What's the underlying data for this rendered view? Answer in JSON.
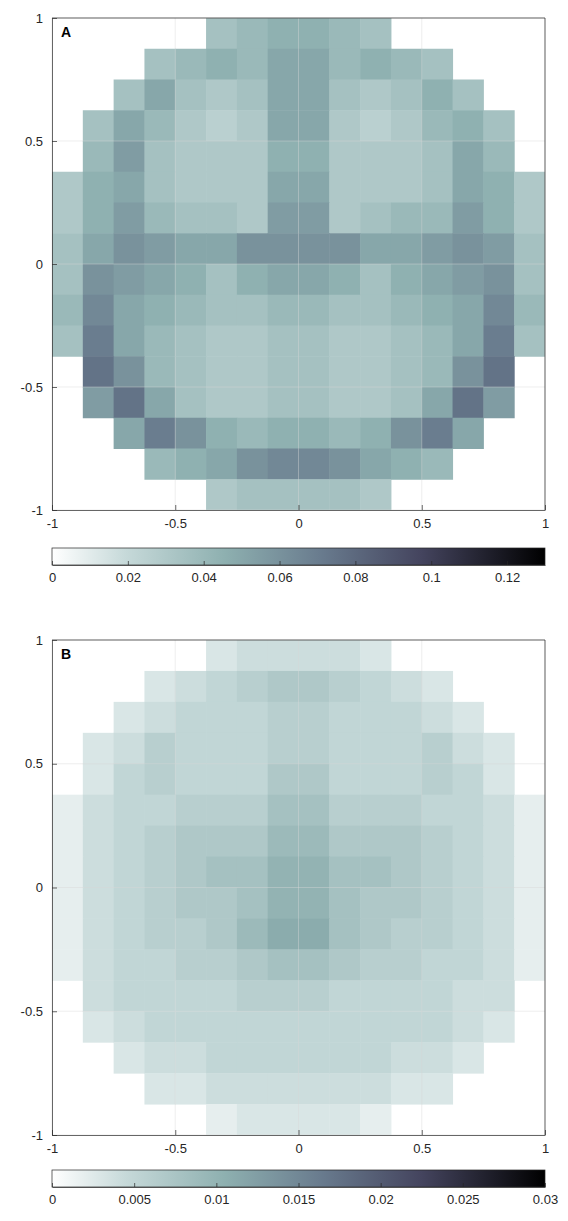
{
  "chart_data": [
    {
      "type": "heatmap",
      "title": "A",
      "grid": true,
      "xlim": [
        -1,
        1
      ],
      "ylim": [
        -1,
        1
      ],
      "xticks": [
        -1,
        -0.5,
        0,
        0.5,
        1
      ],
      "yticks": [
        -1,
        -0.5,
        0,
        0.5,
        1
      ],
      "x": [
        -0.9375,
        -0.8125,
        -0.6875,
        -0.5625,
        -0.4375,
        -0.3125,
        -0.1875,
        -0.0625,
        0.0625,
        0.1875,
        0.3125,
        0.4375,
        0.5625,
        0.6875,
        0.8125,
        0.9375
      ],
      "y": [
        0.9375,
        0.8125,
        0.6875,
        0.5625,
        0.4375,
        0.3125,
        0.1875,
        0.0625,
        -0.0625,
        -0.1875,
        -0.3125,
        -0.4375,
        -0.5625,
        -0.6875,
        -0.8125,
        -0.9375
      ],
      "values": [
        [
          null,
          null,
          null,
          null,
          null,
          0.035,
          0.04,
          0.045,
          0.045,
          0.04,
          0.035,
          null,
          null,
          null,
          null,
          null
        ],
        [
          null,
          null,
          null,
          0.035,
          0.04,
          0.045,
          0.04,
          0.05,
          0.05,
          0.04,
          0.045,
          0.04,
          0.035,
          null,
          null,
          null
        ],
        [
          null,
          null,
          0.035,
          0.05,
          0.035,
          0.03,
          0.035,
          0.05,
          0.05,
          0.035,
          0.03,
          0.035,
          0.045,
          0.035,
          null,
          null
        ],
        [
          null,
          0.035,
          0.05,
          0.04,
          0.03,
          0.025,
          0.03,
          0.05,
          0.05,
          0.03,
          0.025,
          0.03,
          0.04,
          0.045,
          0.035,
          null
        ],
        [
          null,
          0.04,
          0.055,
          0.035,
          0.03,
          0.03,
          0.03,
          0.045,
          0.045,
          0.03,
          0.03,
          0.03,
          0.035,
          0.05,
          0.04,
          null
        ],
        [
          0.03,
          0.045,
          0.05,
          0.035,
          0.03,
          0.03,
          0.03,
          0.05,
          0.05,
          0.03,
          0.03,
          0.03,
          0.035,
          0.05,
          0.045,
          0.03
        ],
        [
          0.03,
          0.045,
          0.055,
          0.04,
          0.035,
          0.035,
          0.03,
          0.055,
          0.055,
          0.03,
          0.035,
          0.04,
          0.04,
          0.055,
          0.045,
          0.03
        ],
        [
          0.035,
          0.05,
          0.06,
          0.055,
          0.05,
          0.05,
          0.06,
          0.06,
          0.06,
          0.06,
          0.05,
          0.05,
          0.055,
          0.06,
          0.055,
          0.035
        ],
        [
          0.035,
          0.06,
          0.055,
          0.05,
          0.045,
          0.035,
          0.045,
          0.05,
          0.05,
          0.045,
          0.035,
          0.045,
          0.05,
          0.055,
          0.06,
          0.035
        ],
        [
          0.04,
          0.065,
          0.05,
          0.045,
          0.04,
          0.035,
          0.035,
          0.04,
          0.04,
          0.035,
          0.035,
          0.04,
          0.045,
          0.05,
          0.065,
          0.04
        ],
        [
          0.035,
          0.07,
          0.05,
          0.04,
          0.035,
          0.03,
          0.03,
          0.035,
          0.035,
          0.03,
          0.03,
          0.035,
          0.04,
          0.05,
          0.07,
          0.035
        ],
        [
          null,
          0.075,
          0.06,
          0.04,
          0.035,
          0.03,
          0.03,
          0.035,
          0.035,
          0.03,
          0.03,
          0.035,
          0.04,
          0.06,
          0.075,
          null
        ],
        [
          null,
          0.055,
          0.075,
          0.05,
          0.035,
          0.03,
          0.03,
          0.035,
          0.035,
          0.03,
          0.03,
          0.035,
          0.05,
          0.075,
          0.055,
          null
        ],
        [
          null,
          null,
          0.05,
          0.07,
          0.06,
          0.045,
          0.04,
          0.045,
          0.045,
          0.04,
          0.045,
          0.06,
          0.07,
          0.05,
          null,
          null
        ],
        [
          null,
          null,
          null,
          0.04,
          0.045,
          0.05,
          0.06,
          0.065,
          0.065,
          0.06,
          0.05,
          0.045,
          0.04,
          null,
          null,
          null
        ],
        [
          null,
          null,
          null,
          null,
          null,
          0.03,
          0.035,
          0.035,
          0.035,
          0.035,
          0.03,
          null,
          null,
          null,
          null,
          null
        ]
      ],
      "colorbar_range": [
        0,
        0.13
      ],
      "colorbar_ticks": [
        0,
        0.02,
        0.04,
        0.06,
        0.08,
        0.1,
        0.12
      ]
    },
    {
      "type": "heatmap",
      "title": "B",
      "grid": true,
      "xlim": [
        -1,
        1
      ],
      "ylim": [
        -1,
        1
      ],
      "xticks": [
        -1,
        -0.5,
        0,
        0.5,
        1
      ],
      "yticks": [
        -1,
        -0.5,
        0,
        0.5,
        1
      ],
      "x": [
        -0.9375,
        -0.8125,
        -0.6875,
        -0.5625,
        -0.4375,
        -0.3125,
        -0.1875,
        -0.0625,
        0.0625,
        0.1875,
        0.3125,
        0.4375,
        0.5625,
        0.6875,
        0.8125,
        0.9375
      ],
      "y": [
        0.9375,
        0.8125,
        0.6875,
        0.5625,
        0.4375,
        0.3125,
        0.1875,
        0.0625,
        -0.0625,
        -0.1875,
        -0.3125,
        -0.4375,
        -0.5625,
        -0.6875,
        -0.8125,
        -0.9375
      ],
      "values": [
        [
          null,
          null,
          null,
          null,
          null,
          0.003,
          0.004,
          0.004,
          0.004,
          0.004,
          0.003,
          null,
          null,
          null,
          null,
          null
        ],
        [
          null,
          null,
          null,
          0.003,
          0.004,
          0.005,
          0.006,
          0.007,
          0.007,
          0.006,
          0.005,
          0.004,
          0.003,
          null,
          null,
          null
        ],
        [
          null,
          null,
          0.003,
          0.004,
          0.005,
          0.005,
          0.005,
          0.006,
          0.006,
          0.005,
          0.005,
          0.005,
          0.004,
          0.003,
          null,
          null
        ],
        [
          null,
          0.003,
          0.004,
          0.006,
          0.005,
          0.005,
          0.005,
          0.006,
          0.006,
          0.005,
          0.005,
          0.005,
          0.006,
          0.004,
          0.003,
          null
        ],
        [
          null,
          0.003,
          0.005,
          0.006,
          0.005,
          0.005,
          0.005,
          0.007,
          0.007,
          0.005,
          0.005,
          0.005,
          0.006,
          0.005,
          0.003,
          null
        ],
        [
          0.002,
          0.004,
          0.005,
          0.005,
          0.006,
          0.006,
          0.006,
          0.008,
          0.008,
          0.006,
          0.006,
          0.006,
          0.005,
          0.005,
          0.004,
          0.002
        ],
        [
          0.002,
          0.004,
          0.005,
          0.006,
          0.007,
          0.007,
          0.007,
          0.009,
          0.009,
          0.007,
          0.007,
          0.007,
          0.006,
          0.005,
          0.004,
          0.002
        ],
        [
          0.002,
          0.004,
          0.005,
          0.006,
          0.007,
          0.008,
          0.008,
          0.01,
          0.01,
          0.008,
          0.008,
          0.007,
          0.006,
          0.005,
          0.004,
          0.002
        ],
        [
          0.002,
          0.004,
          0.005,
          0.006,
          0.007,
          0.007,
          0.008,
          0.01,
          0.01,
          0.008,
          0.007,
          0.007,
          0.006,
          0.005,
          0.004,
          0.002
        ],
        [
          0.002,
          0.004,
          0.005,
          0.006,
          0.006,
          0.007,
          0.009,
          0.011,
          0.011,
          0.008,
          0.007,
          0.006,
          0.006,
          0.005,
          0.004,
          0.002
        ],
        [
          0.002,
          0.004,
          0.005,
          0.005,
          0.006,
          0.006,
          0.007,
          0.008,
          0.008,
          0.007,
          0.006,
          0.006,
          0.005,
          0.005,
          0.004,
          0.002
        ],
        [
          null,
          0.004,
          0.005,
          0.005,
          0.005,
          0.005,
          0.006,
          0.006,
          0.006,
          0.005,
          0.005,
          0.005,
          0.005,
          0.004,
          0.004,
          null
        ],
        [
          null,
          0.003,
          0.004,
          0.005,
          0.005,
          0.005,
          0.005,
          0.005,
          0.005,
          0.005,
          0.005,
          0.005,
          0.005,
          0.004,
          0.003,
          null
        ],
        [
          null,
          null,
          0.003,
          0.004,
          0.004,
          0.005,
          0.005,
          0.005,
          0.005,
          0.005,
          0.005,
          0.004,
          0.004,
          0.003,
          null,
          null
        ],
        [
          null,
          null,
          null,
          0.003,
          0.003,
          0.004,
          0.004,
          0.004,
          0.004,
          0.004,
          0.004,
          0.003,
          0.003,
          null,
          null,
          null
        ],
        [
          null,
          null,
          null,
          null,
          null,
          0.002,
          0.003,
          0.003,
          0.003,
          0.003,
          0.002,
          null,
          null,
          null,
          null,
          null
        ]
      ],
      "colorbar_range": [
        0,
        0.03
      ],
      "colorbar_ticks": [
        0,
        0.005,
        0.01,
        0.015,
        0.02,
        0.025,
        0.03
      ]
    }
  ]
}
